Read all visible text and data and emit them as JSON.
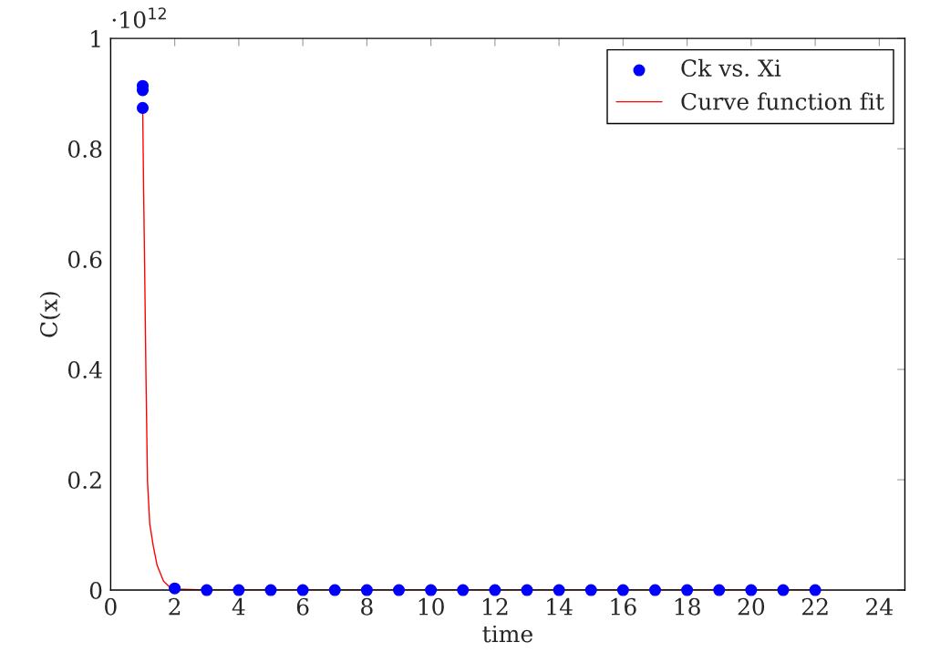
{
  "chart_data": {
    "type": "scatter",
    "xlabel": "time",
    "ylabel": "C(x)",
    "xlim": [
      0,
      24.8
    ],
    "ylim": [
      0,
      1
    ],
    "xticks": [
      0,
      2,
      4,
      6,
      8,
      10,
      12,
      14,
      16,
      18,
      20,
      22,
      24
    ],
    "yticks": [
      0,
      0.2,
      0.4,
      0.6,
      0.8,
      1
    ],
    "annotations": [
      "·10$^{12}$"
    ],
    "legend": "top right",
    "grid": false,
    "series": [
      {
        "name": "Ck vs. Xi",
        "marker": "circle",
        "color": "#0000ff",
        "x": [
          1,
          1,
          1,
          2,
          3,
          4,
          5,
          6,
          7,
          8,
          9,
          10,
          11,
          12,
          13,
          14,
          15,
          16,
          17,
          18,
          19,
          20,
          21,
          22
        ],
        "values": [
          0.914,
          0.906,
          0.874,
          0.003,
          0,
          0,
          0,
          0,
          0,
          0,
          0,
          0,
          0,
          0,
          0,
          0,
          0,
          0,
          0,
          0,
          0,
          0,
          0,
          0
        ]
      },
      {
        "name": "Curve function fit",
        "type": "line",
        "marker": "none",
        "line_style": "solid",
        "color": "#ff0000",
        "x": [
          1,
          1.03,
          1.06,
          1.1,
          1.15,
          1.22,
          1.33,
          1.45,
          1.65,
          1.85,
          2,
          3,
          22
        ],
        "values": [
          0.874,
          0.72,
          0.589,
          0.398,
          0.197,
          0.12,
          0.08,
          0.045,
          0.016,
          0.005,
          0.002,
          0,
          0
        ]
      }
    ]
  }
}
